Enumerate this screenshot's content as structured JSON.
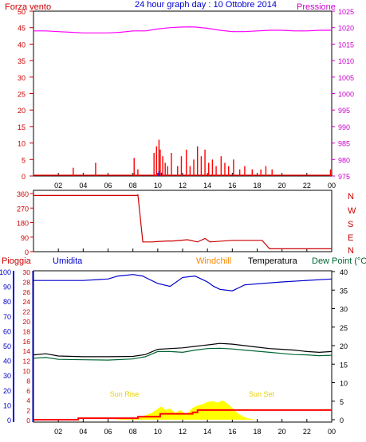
{
  "chart_data": [
    {
      "type": "line",
      "title": "24 hour graph day : 10 Ottobre 2014",
      "left_label": "Forza vento",
      "right_label": "Pressione",
      "left_ticks": [
        "0",
        "5",
        "10",
        "15",
        "20",
        "25",
        "30",
        "35",
        "40",
        "45",
        "50"
      ],
      "right_ticks": [
        "975",
        "980",
        "985",
        "990",
        "995",
        "1000",
        "1005",
        "1010",
        "1015",
        "1020",
        "1025"
      ],
      "ylim_left": [
        0,
        50
      ],
      "ylim_right": [
        975,
        1025
      ],
      "colors": {
        "wind": "#ff0000",
        "gust": "#0000ff",
        "pressure": "#ff00ff"
      },
      "pressure": {
        "x": [
          0,
          1,
          2,
          3,
          4,
          5,
          6,
          7,
          8,
          9,
          10,
          11,
          12,
          13,
          14,
          15,
          16,
          17,
          18,
          19,
          20,
          21,
          22,
          23,
          24
        ],
        "values": [
          1019,
          1019,
          1018.8,
          1018.6,
          1018.4,
          1018.4,
          1018.4,
          1018.6,
          1019,
          1019,
          1019.6,
          1020,
          1020.2,
          1020.2,
          1019.8,
          1019.2,
          1018.8,
          1018.8,
          1019,
          1019.2,
          1019.2,
          1019,
          1019,
          1019.2,
          1019.2
        ]
      },
      "wind_bars": {
        "x": [
          3.2,
          5,
          8.1,
          8.4,
          9.7,
          9.9,
          10.1,
          10.2,
          10.4,
          10.6,
          10.8,
          11.1,
          11.6,
          11.9,
          12.3,
          12.6,
          12.9,
          13.2,
          13.5,
          13.8,
          14.1,
          14.4,
          14.7,
          15.1,
          15.4,
          15.7,
          16.1,
          16.6,
          17,
          17.6,
          18.3,
          18.7,
          19.2,
          23.9
        ],
        "values": [
          2.5,
          4,
          5.5,
          2,
          7,
          9,
          11,
          8,
          6,
          4,
          3,
          7,
          3,
          6,
          8,
          3,
          5,
          9,
          6,
          8,
          4,
          5,
          3,
          6,
          4,
          3,
          5,
          2,
          3,
          2,
          2,
          3,
          2,
          2
        ]
      },
      "gust_bars": {
        "x": [
          10.1,
          10.3
        ],
        "values": [
          1.5,
          1
        ]
      }
    },
    {
      "type": "line",
      "right_label": [
        "N",
        "W",
        "S",
        "E",
        "N"
      ],
      "left_ticks": [
        "0",
        "90",
        "180",
        "270",
        "360"
      ],
      "ylim": [
        0,
        360
      ],
      "color": "#cc0000",
      "x": [
        0,
        8.4,
        8.4,
        8.8,
        9.6,
        9.9,
        10.8,
        11.2,
        12.4,
        13.2,
        13.8,
        14.2,
        16.0,
        17.2,
        18.4,
        19.0,
        21.0,
        22.8,
        24
      ],
      "values": [
        348,
        348,
        355,
        60,
        60,
        62,
        66,
        66,
        74,
        60,
        82,
        60,
        70,
        70,
        70,
        18,
        18,
        18,
        18
      ]
    },
    {
      "type": "line",
      "series_labels": [
        "Pioggia",
        "Umidita",
        "Windchill",
        "Temperatura",
        "Dew Point (°C"
      ],
      "left_ticks_humidity": [
        "0",
        "10",
        "20",
        "30",
        "40",
        "50",
        "60",
        "70",
        "80",
        "90",
        "100"
      ],
      "left_ticks_rain": [
        "0",
        "2",
        "4",
        "6",
        "8",
        "10",
        "12",
        "14",
        "16",
        "18",
        "20",
        "22",
        "24",
        "26",
        "28",
        "30"
      ],
      "right_ticks": [
        "0",
        "5",
        "10",
        "15",
        "20",
        "25",
        "30",
        "35",
        "40"
      ],
      "x_ticks": [
        "02",
        "04",
        "06",
        "08",
        "10",
        "12",
        "14",
        "16",
        "18",
        "20",
        "22",
        "00"
      ],
      "annotations": [
        "Sun Rise",
        "Sun Set"
      ],
      "ylim_humidity": [
        0,
        100
      ],
      "ylim_temperature": [
        0,
        40
      ],
      "colors": {
        "humidity": "#0000cc",
        "temperature": "#000000",
        "dewpoint": "#006633",
        "rain": "#ff0000",
        "solar": "#ffff00"
      },
      "humidity": {
        "x": [
          0,
          4,
          6,
          6.8,
          8,
          8.8,
          9,
          10,
          11,
          12,
          13,
          14,
          14.5,
          15,
          16,
          16.5,
          17,
          20,
          24
        ],
        "values": [
          94,
          94,
          95,
          97,
          98,
          97,
          96,
          92,
          90,
          96,
          97,
          93,
          90,
          88,
          87,
          89,
          91,
          93,
          95
        ]
      },
      "temperature": {
        "x": [
          0,
          1,
          2,
          4,
          6,
          8,
          9,
          10,
          11,
          12,
          13,
          14,
          15,
          16,
          17,
          18,
          19,
          20,
          21,
          22,
          23,
          24
        ],
        "values": [
          17.5,
          17.8,
          17.2,
          17,
          17,
          17.1,
          17.6,
          19,
          19.2,
          19.4,
          19.8,
          20.2,
          20.6,
          20.4,
          20,
          19.6,
          19.2,
          19,
          18.8,
          18.4,
          18.2,
          18.4
        ]
      },
      "dewpoint": {
        "x": [
          0,
          1,
          2,
          4,
          6,
          8,
          9,
          10,
          11,
          12,
          13,
          14,
          15,
          16,
          17,
          18,
          19,
          20,
          21,
          22,
          23,
          24
        ],
        "values": [
          16.6,
          16.8,
          16.3,
          16.2,
          16.1,
          16.4,
          17,
          18.4,
          18.4,
          18.2,
          18.8,
          19.2,
          19.3,
          19.1,
          18.8,
          18.5,
          18.2,
          17.9,
          17.6,
          17.5,
          17.3,
          17.4
        ]
      },
      "rain": {
        "x": [
          0,
          3.6,
          3.6,
          8.4,
          8.4,
          10.2,
          10.2,
          12.8,
          12.8,
          13.2,
          13.2,
          24
        ],
        "values": [
          0,
          0,
          0.4,
          0.4,
          0.8,
          0.8,
          1.6,
          1.6,
          2,
          2,
          2.6,
          2.6
        ]
      },
      "solar": {
        "x": [
          6.5,
          7,
          8,
          8.5,
          9,
          9.5,
          10,
          10.3,
          10.6,
          11,
          11.4,
          11.8,
          12.3,
          12.8,
          13.2,
          13.6,
          14,
          14.4,
          14.8,
          15.2,
          15.6,
          16,
          16.4,
          16.8,
          17.2,
          17.6,
          18
        ],
        "values": [
          0,
          0.2,
          0.4,
          0.6,
          1.2,
          1.8,
          3,
          3.6,
          2.6,
          3,
          1.8,
          2.6,
          1.4,
          3.2,
          3.8,
          4.2,
          4.8,
          5,
          4.6,
          5.2,
          4.4,
          3.2,
          1.8,
          1,
          0.4,
          0.2,
          0
        ]
      }
    }
  ]
}
